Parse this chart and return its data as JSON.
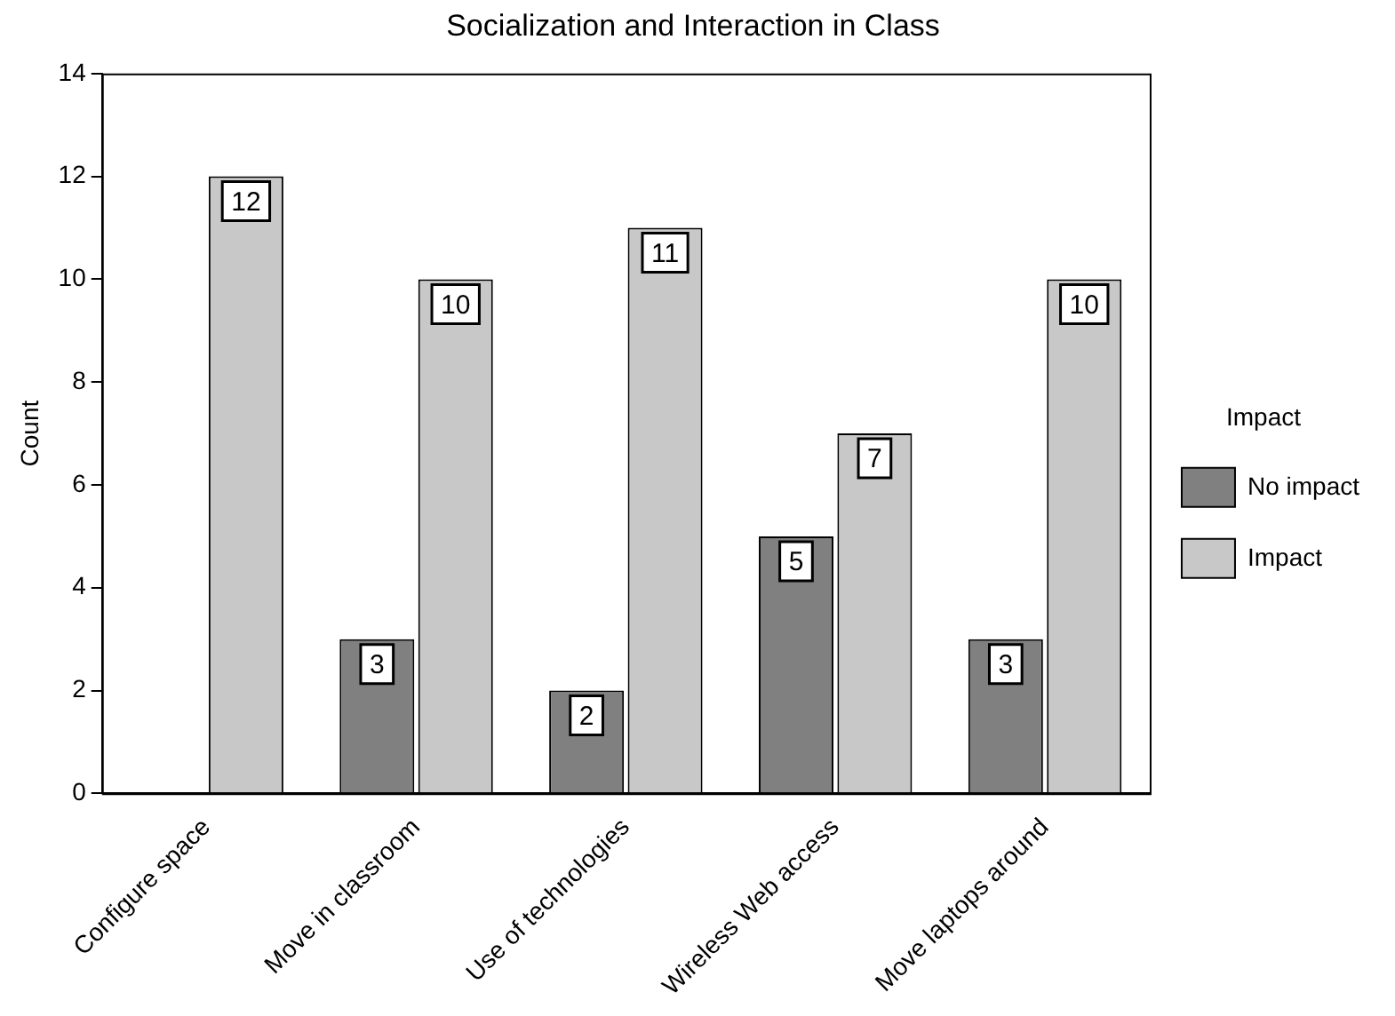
{
  "chart_data": {
    "type": "bar",
    "title": "Socialization and Interaction in Class",
    "ylabel": "Count",
    "legend_title": "Impact",
    "categories": [
      "Configure space",
      "Move in classroom",
      "Use of technologies",
      "Wireless Web access",
      "Move laptops around"
    ],
    "series": [
      {
        "name": "No impact",
        "color": "#808080",
        "values": [
          null,
          3,
          2,
          5,
          3
        ]
      },
      {
        "name": "Impact",
        "color": "#c8c8c8",
        "values": [
          12,
          10,
          11,
          7,
          10
        ]
      }
    ],
    "ylim": [
      0,
      14
    ],
    "yticks": [
      0,
      2,
      4,
      6,
      8,
      10,
      12,
      14
    ],
    "grid": false,
    "legend": "right",
    "data_labels": true
  }
}
